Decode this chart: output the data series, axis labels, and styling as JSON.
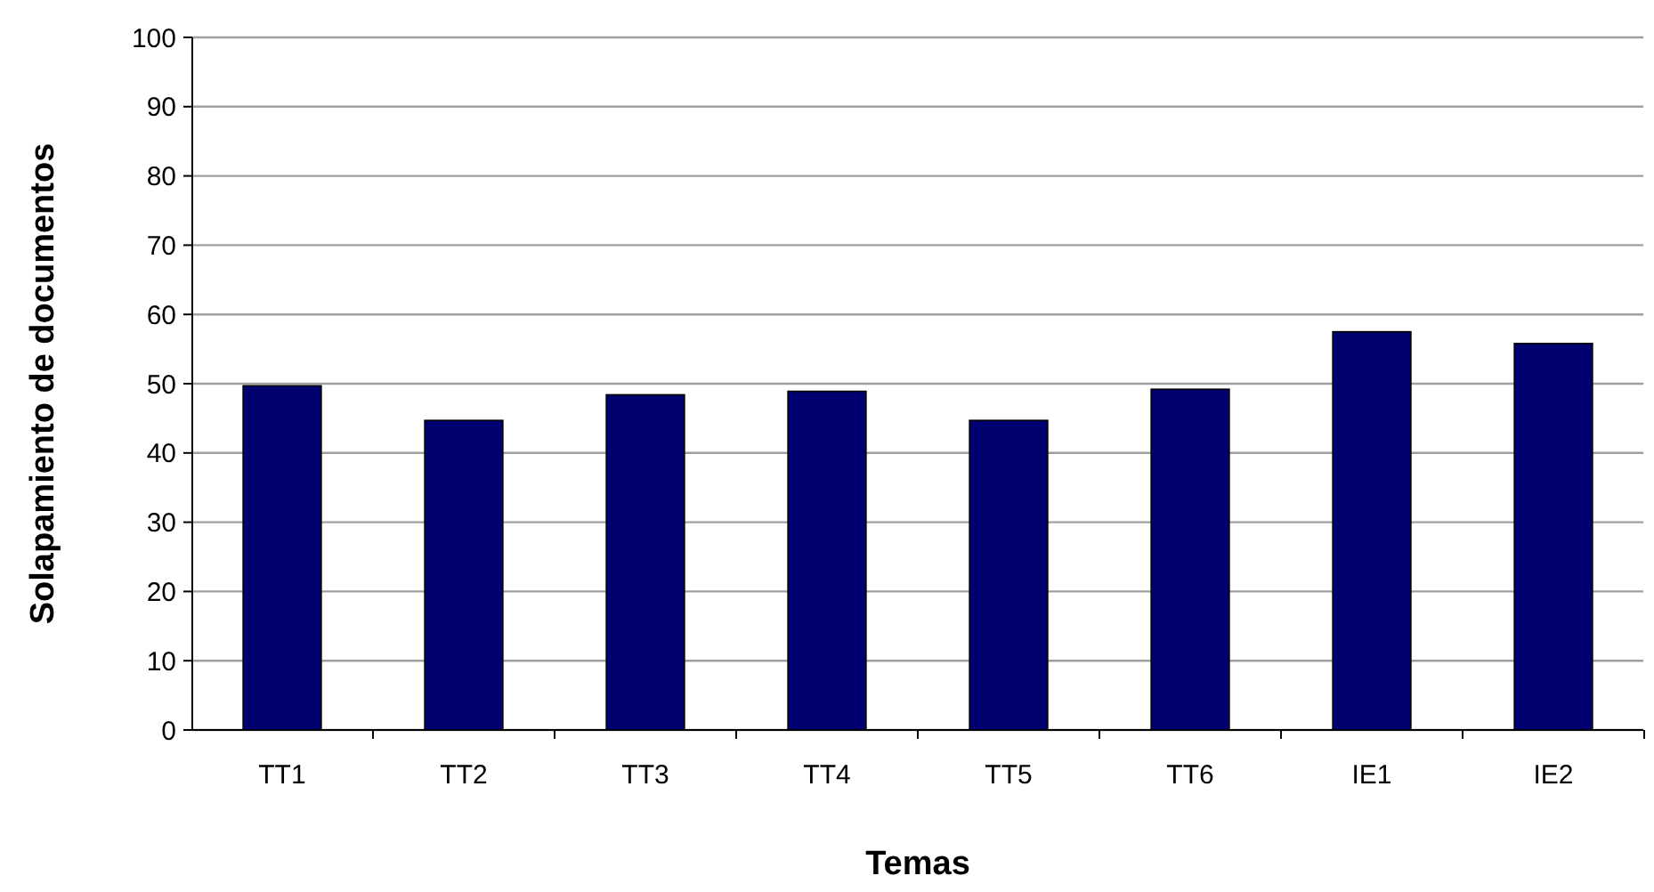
{
  "chart_data": {
    "type": "bar",
    "xlabel": "Temas",
    "ylabel": "Solapamiento de documentos",
    "categories": [
      "TT1",
      "TT2",
      "TT3",
      "TT4",
      "TT5",
      "TT6",
      "IE1",
      "IE2"
    ],
    "values": [
      49.7,
      44.7,
      48.4,
      48.9,
      44.7,
      49.2,
      57.5,
      55.8
    ],
    "color": "#000070",
    "ylim": [
      0,
      100
    ],
    "yticks": [
      0,
      10,
      20,
      30,
      40,
      50,
      60,
      70,
      80,
      90,
      100
    ],
    "grid": "y"
  }
}
